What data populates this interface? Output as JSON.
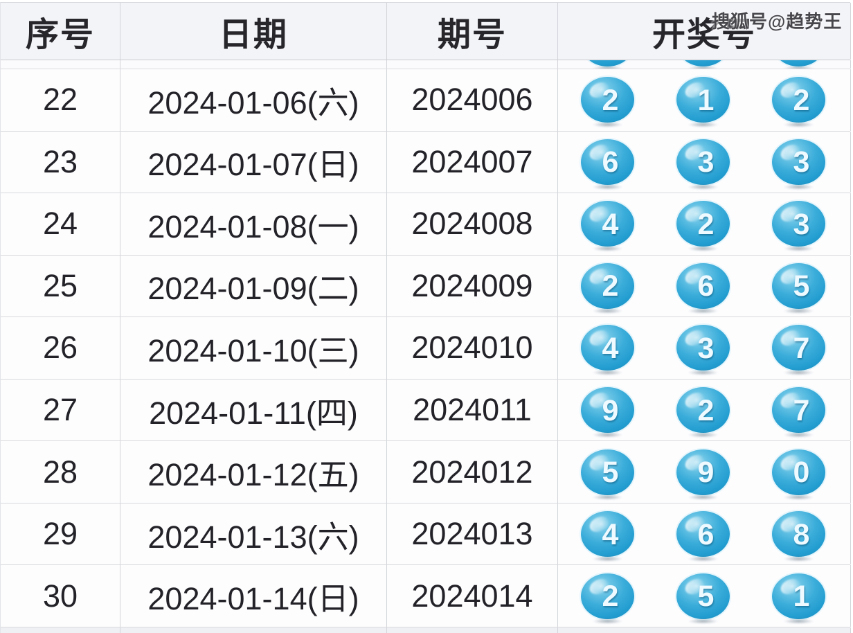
{
  "watermark": {
    "text": "搜狐号@趋势王"
  },
  "colors": {
    "ball": "#2aa2d4",
    "ball_highlight": "#b9e4f4",
    "ball_dark_rim": "#0e74a4",
    "header_bg": "#f3f4f8",
    "row_bg": "#fdfdfe",
    "grid_border": "#d3d4d9",
    "text": "#222228"
  },
  "table": {
    "columns": [
      {
        "label": "序号"
      },
      {
        "label": "日期"
      },
      {
        "label": "期号"
      },
      {
        "label": "开奖号"
      }
    ],
    "rows": [
      {
        "seq": "22",
        "date": "2024-01-06(六)",
        "period": "2024006",
        "balls": [
          "2",
          "1",
          "2"
        ]
      },
      {
        "seq": "23",
        "date": "2024-01-07(日)",
        "period": "2024007",
        "balls": [
          "6",
          "3",
          "3"
        ]
      },
      {
        "seq": "24",
        "date": "2024-01-08(一)",
        "period": "2024008",
        "balls": [
          "4",
          "2",
          "3"
        ]
      },
      {
        "seq": "25",
        "date": "2024-01-09(二)",
        "period": "2024009",
        "balls": [
          "2",
          "6",
          "5"
        ]
      },
      {
        "seq": "26",
        "date": "2024-01-10(三)",
        "period": "2024010",
        "balls": [
          "4",
          "3",
          "7"
        ]
      },
      {
        "seq": "27",
        "date": "2024-01-11(四)",
        "period": "2024011",
        "balls": [
          "9",
          "2",
          "7"
        ]
      },
      {
        "seq": "28",
        "date": "2024-01-12(五)",
        "period": "2024012",
        "balls": [
          "5",
          "9",
          "0"
        ]
      },
      {
        "seq": "29",
        "date": "2024-01-13(六)",
        "period": "2024013",
        "balls": [
          "4",
          "6",
          "8"
        ]
      },
      {
        "seq": "30",
        "date": "2024-01-14(日)",
        "period": "2024014",
        "balls": [
          "2",
          "5",
          "1"
        ]
      }
    ]
  }
}
